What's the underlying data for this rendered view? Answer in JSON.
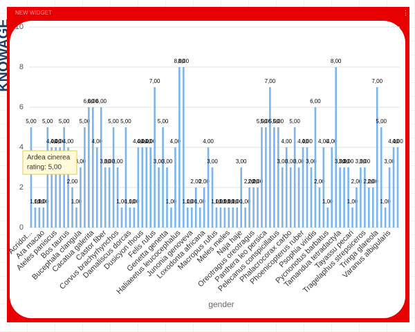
{
  "widget": {
    "header": "NEW WIDGET",
    "logo": "KNOWAGE"
  },
  "tooltip": {
    "title": "Ardea cinerea",
    "text": "rating: 5,00"
  },
  "chart_data": {
    "type": "bar",
    "x_label": "gender",
    "color": "#7cb5ec",
    "grid": true,
    "ylim": [
      0,
      10
    ],
    "yticks": [
      0,
      2,
      4,
      6,
      8,
      10
    ],
    "categories": [
      "Acridot...",
      null,
      null,
      "Ara macao",
      null,
      null,
      "Ateles paniscus",
      null,
      null,
      "Bos taurus",
      null,
      null,
      "Bucephala clangula",
      null,
      null,
      "Cacatua galerita",
      null,
      null,
      "Castor fiber",
      null,
      null,
      "Corvus brachyrhynchos",
      null,
      null,
      "Damaliscus dorcas",
      null,
      null,
      "Dusicyon thous",
      null,
      null,
      "Felis rufus",
      null,
      null,
      "Genetta genetta",
      null,
      null,
      "Haliaeetus leucocephalus",
      null,
      null,
      "Junonia genoveva",
      null,
      null,
      "Loxodonta africana",
      null,
      null,
      "Macropus rufus",
      null,
      null,
      "Meles meles",
      null,
      null,
      "Naja haje",
      null,
      null,
      "Oreotragus oreotragus",
      null,
      null,
      "Panthera leo persica",
      null,
      null,
      "Pelecanus conspicillatus",
      null,
      null,
      "Phalacrocorax carbo",
      null,
      null,
      "Phoenicopterus ruber",
      null,
      null,
      "Psophia viridis",
      null,
      null,
      "Pycnonotus barbatus",
      null,
      null,
      "Tamandua tetradactyla",
      null,
      null,
      "Tayassu pecari",
      null,
      null,
      "Tragelaphus strepsiceros",
      null,
      null,
      "Tringa glareola",
      null,
      null,
      "Varanus albigularis",
      null,
      null
    ],
    "values": [
      5,
      1,
      1,
      1,
      5,
      4,
      4,
      4,
      5,
      4,
      2,
      1,
      3,
      5,
      6,
      6,
      4,
      6,
      3,
      3,
      5,
      3,
      1,
      5,
      1,
      1,
      4,
      4,
      4,
      4,
      7,
      3,
      5,
      3,
      1,
      4,
      8,
      8,
      1,
      1,
      2,
      1,
      2,
      4,
      3,
      1,
      1,
      1,
      1,
      1,
      1,
      3,
      1,
      2,
      2,
      2,
      5,
      5,
      7,
      5,
      5,
      3,
      4,
      3,
      5,
      3,
      4,
      4,
      3,
      6,
      2,
      4,
      1,
      4,
      8,
      3,
      3,
      3,
      1,
      2,
      3,
      3,
      2,
      2,
      7,
      5,
      1,
      3,
      4,
      4
    ],
    "value_labels": [
      "5,00",
      "1,00",
      "1,00",
      "1,00",
      "5,00",
      "4,00",
      "4,00",
      "4,00",
      "5,00",
      "4,00",
      "2,00",
      "1,00",
      "3,00",
      "5,00",
      "6,00",
      "6,00",
      "4,00",
      "6,00",
      "3,00",
      "3,00",
      "5,00",
      "3,00",
      "1,00",
      "5,00",
      "1,00",
      "1,00",
      "4,00",
      "4,00",
      "4,00",
      "4,00",
      "7,00",
      "3,00",
      "5,00",
      "3,00",
      "1,00",
      "4,00",
      "8,00",
      "8,00",
      "1,00",
      "1,00",
      "2,00",
      "1,00",
      "2,00",
      "4,00",
      "3,00",
      "1,00",
      "1,00",
      "1,00",
      "1,00",
      "1,00",
      "1,00",
      "3,00",
      "1,00",
      "2,00",
      "2,00",
      "2,00",
      "5,00",
      "5,00",
      "7,00",
      "5,00",
      "5,00",
      "3,00",
      "4,00",
      "3,00",
      "5,00",
      "3,00",
      "4,00",
      "4,00",
      "3,00",
      "6,00",
      "2,00",
      "4,00",
      "1,00",
      "4,00",
      "8,00",
      "3,00",
      "3,00",
      "3,00",
      "1,00",
      "2,00",
      "3,00",
      "3,00",
      "2,00",
      "2,00",
      "7,00",
      "5,00",
      "1,00",
      "3,00",
      "4,00",
      "4,00"
    ]
  }
}
